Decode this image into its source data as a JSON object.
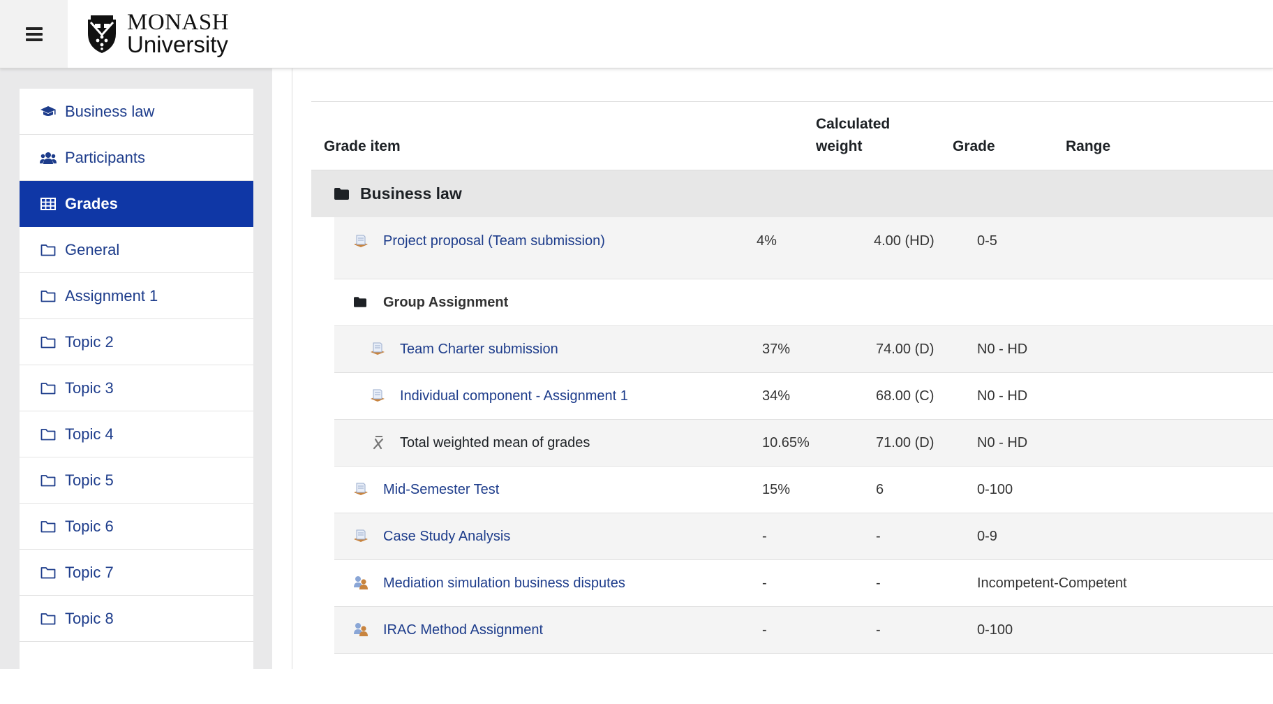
{
  "header": {
    "logo_line1": "MONASH",
    "logo_line2": "University"
  },
  "sidebar": {
    "items": [
      {
        "label": "Business law",
        "icon": "graduation-cap-icon"
      },
      {
        "label": "Participants",
        "icon": "users-icon"
      },
      {
        "label": "Grades",
        "icon": "table-icon",
        "active": true
      },
      {
        "label": "General",
        "icon": "folder-outline-icon"
      },
      {
        "label": "Assignment 1",
        "icon": "folder-outline-icon"
      },
      {
        "label": "Topic 2",
        "icon": "folder-outline-icon"
      },
      {
        "label": "Topic 3",
        "icon": "folder-outline-icon"
      },
      {
        "label": "Topic 4",
        "icon": "folder-outline-icon"
      },
      {
        "label": "Topic 5",
        "icon": "folder-outline-icon"
      },
      {
        "label": "Topic 6",
        "icon": "folder-outline-icon"
      },
      {
        "label": "Topic 7",
        "icon": "folder-outline-icon"
      },
      {
        "label": "Topic 8",
        "icon": "folder-outline-icon"
      }
    ]
  },
  "table": {
    "headers": {
      "grade_item": "Grade item",
      "weight_line1": "Calculated",
      "weight_line2": "weight",
      "grade": "Grade",
      "range": "Range"
    },
    "category": {
      "name": "Business law"
    },
    "rows": [
      {
        "name": "Project proposal (Team submission)",
        "weight": "4%",
        "grade": "4.00 (HD)",
        "range": "0-5",
        "icon": "assignment-icon"
      },
      {
        "name": "Group Assignment",
        "icon": "folder-icon"
      },
      {
        "name": "Team Charter submission",
        "weight": "37%",
        "grade": "74.00 (D)",
        "range": "N0 - HD",
        "icon": "assignment-icon"
      },
      {
        "name": "Individual component - Assignment 1",
        "weight": "34%",
        "grade": "68.00 (C)",
        "range": "N0 - HD",
        "icon": "assignment-icon"
      },
      {
        "name": "Total weighted mean of grades",
        "weight": "10.65%",
        "grade": "71.00 (D)",
        "range": "N0 - HD",
        "icon": "mean-icon"
      },
      {
        "name": "Mid-Semester Test",
        "weight": "15%",
        "grade": "6",
        "range": "0-100",
        "icon": "assignment-icon"
      },
      {
        "name": "Case Study Analysis",
        "weight": "-",
        "grade": "-",
        "range": "0-9",
        "icon": "assignment-icon"
      },
      {
        "name": "Mediation simulation business disputes",
        "weight": "-",
        "grade": "-",
        "range": "Incompetent-Competent",
        "icon": "workshop-icon"
      },
      {
        "name": "IRAC Method Assignment",
        "weight": "-",
        "grade": "-",
        "range": "0-100",
        "icon": "workshop-icon"
      }
    ]
  },
  "colors": {
    "link": "#1d3c8b",
    "active_nav": "#0f37a6",
    "sidebar_bg": "#e9e9ea",
    "category_bg": "#e7e7e7"
  }
}
